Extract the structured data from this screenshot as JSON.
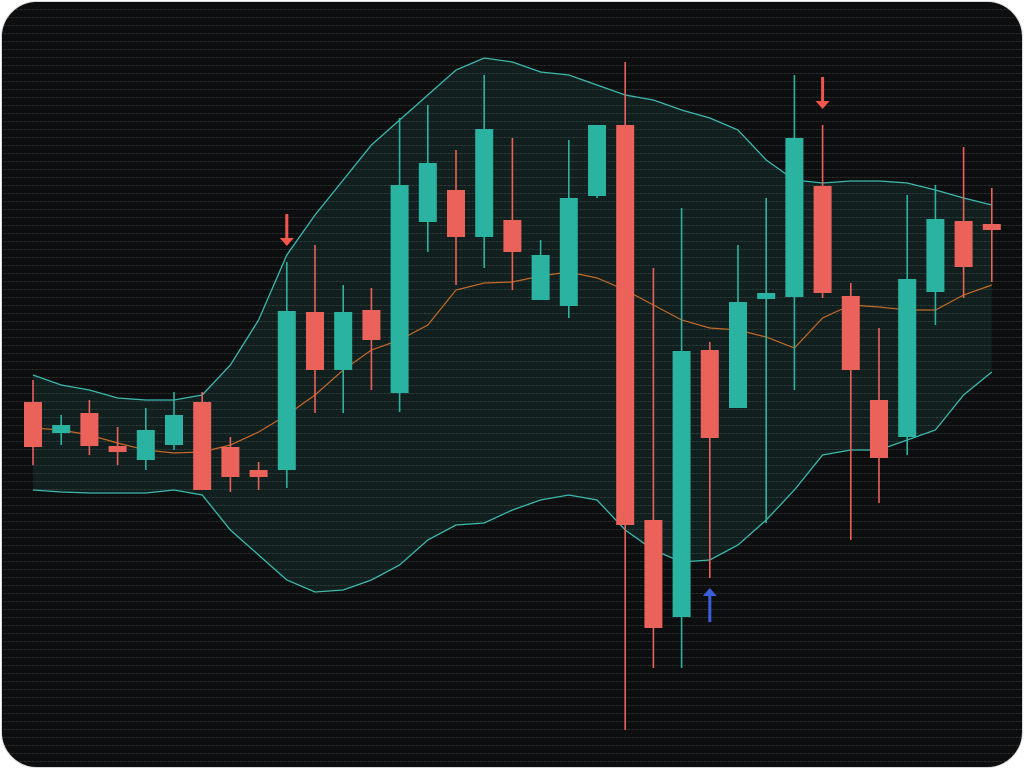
{
  "chart_data": {
    "type": "candlestick",
    "ylim": [
      0,
      740
    ],
    "grid": true,
    "open": [
      338,
      307,
      327,
      294,
      280,
      295,
      338,
      293,
      270,
      270,
      428,
      370,
      430,
      347,
      518,
      550,
      503,
      520,
      440,
      434,
      544,
      615,
      220,
      123,
      390,
      332,
      441,
      443,
      554,
      444,
      340,
      303,
      448,
      519,
      516
    ],
    "high": [
      360,
      325,
      340,
      313,
      332,
      348,
      348,
      303,
      278,
      478,
      495,
      455,
      452,
      622,
      635,
      590,
      665,
      602,
      500,
      600,
      615,
      678,
      472,
      532,
      398,
      495,
      542,
      665,
      615,
      457,
      412,
      545,
      555,
      593,
      552
    ],
    "low": [
      275,
      295,
      285,
      275,
      270,
      290,
      250,
      248,
      250,
      252,
      327,
      327,
      350,
      328,
      488,
      455,
      472,
      450,
      440,
      422,
      542,
      10,
      72,
      72,
      162,
      332,
      217,
      350,
      442,
      200,
      237,
      285,
      415,
      442,
      458
    ],
    "close": [
      293,
      315,
      294,
      288,
      310,
      325,
      250,
      263,
      263,
      429,
      370,
      428,
      400,
      555,
      577,
      503,
      611,
      488,
      485,
      542,
      615,
      215,
      112,
      389,
      302,
      438,
      447,
      602,
      447,
      370,
      282,
      461,
      521,
      473,
      510
    ],
    "up_color": "#2ab3a0",
    "down_color": "#ea6259",
    "bands": {
      "upper": [
        365,
        355,
        350,
        342,
        340,
        340,
        345,
        375,
        420,
        485,
        525,
        560,
        595,
        620,
        645,
        670,
        682,
        678,
        668,
        665,
        655,
        645,
        640,
        630,
        622,
        610,
        580,
        560,
        557,
        559,
        559,
        557,
        550,
        542,
        535
      ],
      "middle": [
        312,
        310,
        305,
        297,
        290,
        287,
        288,
        295,
        308,
        325,
        345,
        370,
        390,
        400,
        415,
        450,
        457,
        458,
        464,
        468,
        462,
        450,
        435,
        420,
        412,
        410,
        403,
        392,
        422,
        435,
        433,
        430,
        430,
        445,
        455
      ],
      "lower": [
        250,
        248,
        247,
        247,
        247,
        250,
        245,
        210,
        185,
        160,
        148,
        150,
        160,
        175,
        200,
        215,
        217,
        230,
        240,
        245,
        240,
        210,
        190,
        178,
        180,
        195,
        220,
        250,
        285,
        290,
        290,
        300,
        310,
        345,
        368
      ],
      "band_color": "#3cb8ad",
      "middle_color": "#c46a26"
    },
    "signals": [
      {
        "index": 9,
        "type": "sell",
        "color": "#f0564c"
      },
      {
        "index": 28,
        "type": "sell",
        "color": "#f0564c"
      },
      {
        "index": 24,
        "type": "buy",
        "color": "#3c5fd8"
      }
    ]
  }
}
